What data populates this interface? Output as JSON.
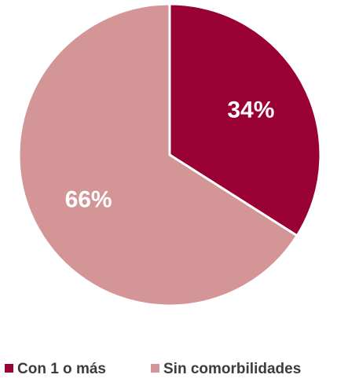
{
  "chart_data": {
    "type": "pie",
    "start_angle_deg": 0,
    "direction": "clockwise",
    "slices": [
      {
        "label": "Con 1 o más",
        "value": 34,
        "display": "34%",
        "color": "#990033"
      },
      {
        "label": "Sin comorbilidades",
        "value": 66,
        "display": "66%",
        "color": "#d39596"
      }
    ],
    "legend": {
      "position": "bottom",
      "items": [
        {
          "label": "Con 1 o más",
          "color": "#990033"
        },
        {
          "label": "Sin comorbilidades",
          "color": "#d39596"
        }
      ]
    }
  }
}
